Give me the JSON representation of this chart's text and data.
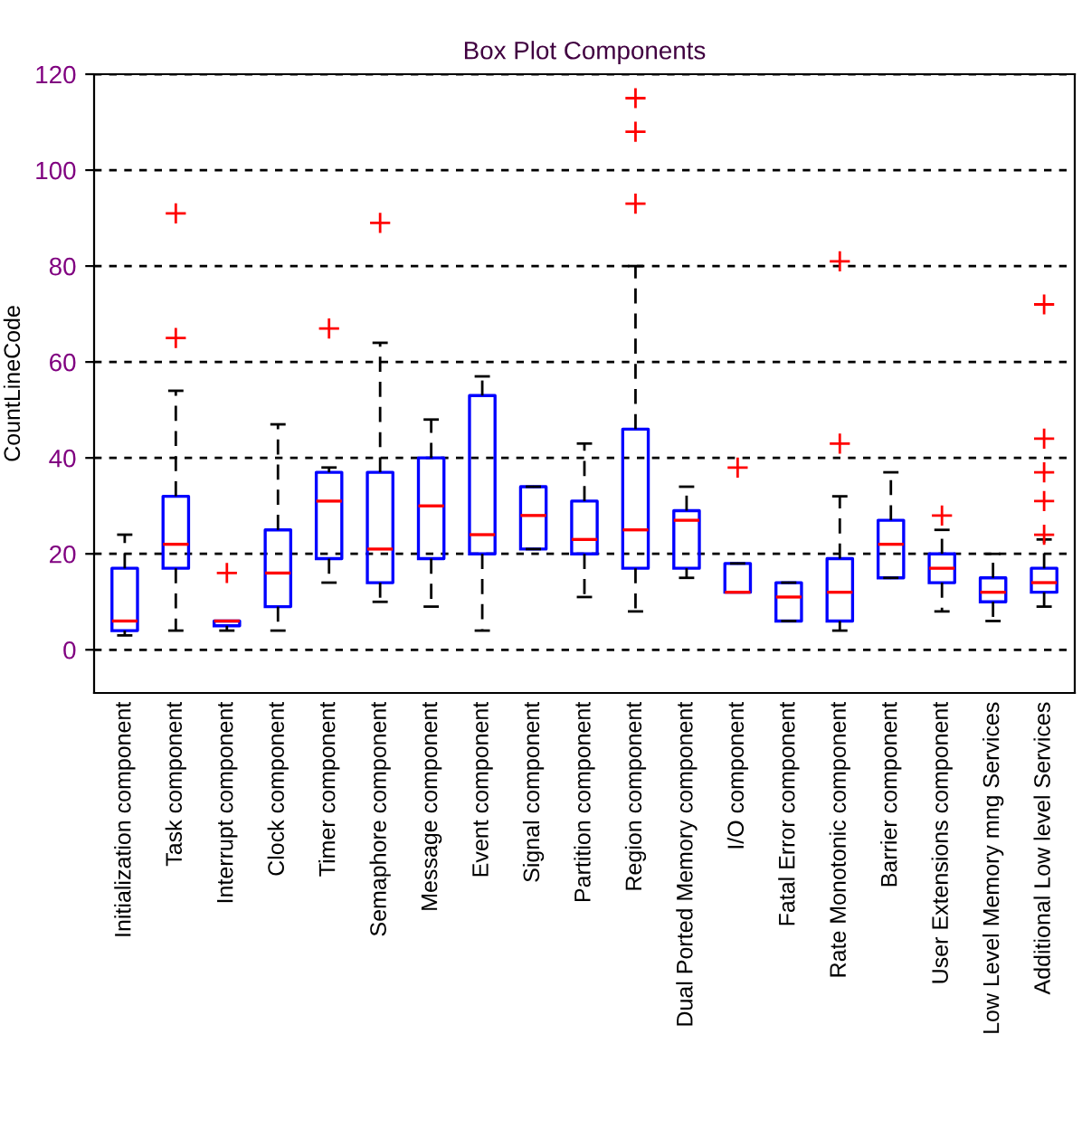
{
  "chart_data": {
    "type": "box",
    "title": "Box Plot Components",
    "ylabel": "CountLineCode",
    "categories": [
      "Initialization component",
      "Task component",
      "Interrupt component",
      "Clock component",
      "Timer component",
      "Semaphore component",
      "Message component",
      "Event component",
      "Signal component",
      "Partition component",
      "Region component",
      "Dual Ported Memory component",
      "I/O component",
      "Fatal Error component",
      "Rate Monotonic component",
      "Barrier component",
      "User Extensions component",
      "Low Level Memory mng Services",
      "Additional Low level Services"
    ],
    "boxes": [
      {
        "low": 3,
        "q1": 4,
        "median": 6,
        "q3": 17,
        "high": 24
      },
      {
        "low": 4,
        "q1": 17,
        "median": 22,
        "q3": 32,
        "high": 54,
        "outliers": [
          65,
          91
        ]
      },
      {
        "low": 4,
        "q1": 5,
        "median": 6,
        "q3": 6,
        "high": 6,
        "outliers": [
          16
        ]
      },
      {
        "low": 4,
        "q1": 9,
        "median": 16,
        "q3": 25,
        "high": 47
      },
      {
        "low": 14,
        "q1": 19,
        "median": 31,
        "q3": 37,
        "high": 38,
        "outliers": [
          67
        ]
      },
      {
        "low": 10,
        "q1": 14,
        "median": 21,
        "q3": 37,
        "high": 64,
        "outliers": [
          89
        ]
      },
      {
        "low": 9,
        "q1": 19,
        "median": 30,
        "q3": 40,
        "high": 48
      },
      {
        "low": 4,
        "q1": 20,
        "median": 24,
        "q3": 53,
        "high": 57
      },
      {
        "low": 21,
        "q1": 21,
        "median": 28,
        "q3": 34,
        "high": 34
      },
      {
        "low": 11,
        "q1": 20,
        "median": 23,
        "q3": 31,
        "high": 43
      },
      {
        "low": 8,
        "q1": 17,
        "median": 25,
        "q3": 46,
        "high": 80,
        "outliers": [
          93,
          108,
          115
        ]
      },
      {
        "low": 15,
        "q1": 17,
        "median": 27,
        "q3": 29,
        "high": 34
      },
      {
        "low": 12,
        "q1": 12,
        "median": 12,
        "q3": 18,
        "high": 18,
        "outliers": [
          38
        ]
      },
      {
        "low": 6,
        "q1": 6,
        "median": 11,
        "q3": 14,
        "high": 14
      },
      {
        "low": 4,
        "q1": 6,
        "median": 12,
        "q3": 19,
        "high": 32,
        "outliers": [
          43,
          81
        ]
      },
      {
        "low": 15,
        "q1": 15,
        "median": 22,
        "q3": 27,
        "high": 37
      },
      {
        "low": 8,
        "q1": 14,
        "median": 17,
        "q3": 20,
        "high": 25,
        "outliers": [
          28
        ]
      },
      {
        "low": 6,
        "q1": 10,
        "median": 12,
        "q3": 15,
        "high": 20
      },
      {
        "low": 9,
        "q1": 12,
        "median": 14,
        "q3": 17,
        "high": 23,
        "outliers": [
          24,
          31,
          37,
          44,
          72
        ]
      }
    ],
    "color": "#0000ff",
    "ylim": [
      -9,
      120
    ],
    "yticks": [
      0,
      20,
      40,
      60,
      80,
      100,
      120
    ],
    "grid": "y"
  }
}
